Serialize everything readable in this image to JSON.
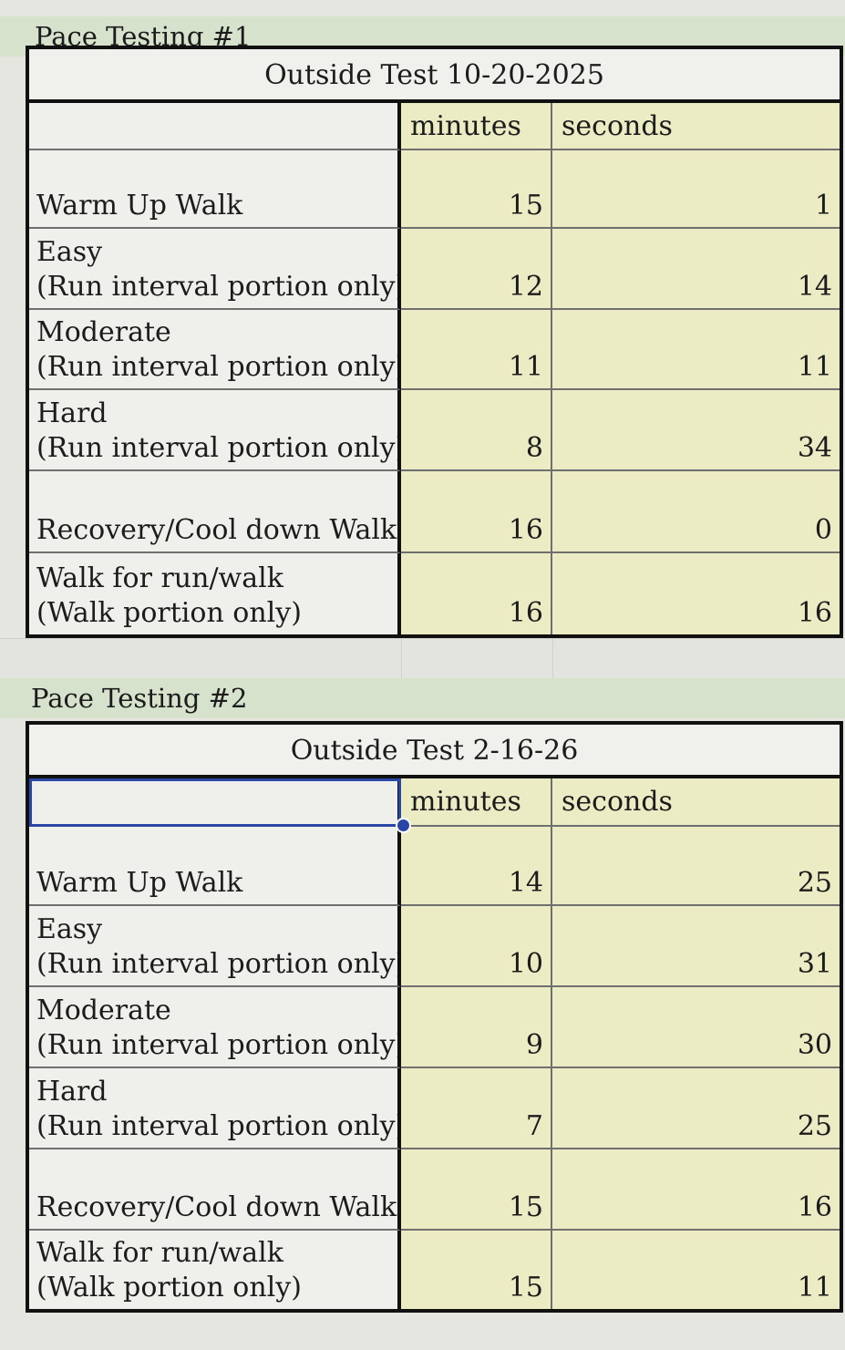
{
  "sections": [
    {
      "header": "Pace Testing #1",
      "title": "Outside Test 10-20-2025",
      "columns": [
        "minutes",
        "seconds"
      ],
      "rows": [
        {
          "label_line1": "",
          "label_line2": "Warm Up Walk",
          "minutes": "15",
          "seconds": "1"
        },
        {
          "label_line1": "Easy",
          "label_line2": "(Run interval portion only)",
          "minutes": "12",
          "seconds": "14"
        },
        {
          "label_line1": "Moderate",
          "label_line2": "(Run interval portion only)",
          "minutes": "11",
          "seconds": "11"
        },
        {
          "label_line1": "Hard",
          "label_line2": "(Run interval portion only)",
          "minutes": "8",
          "seconds": "34"
        },
        {
          "label_line1": "",
          "label_line2": "Recovery/Cool down Walk",
          "minutes": "16",
          "seconds": "0"
        },
        {
          "label_line1": "Walk for run/walk",
          "label_line2": "(Walk portion only)",
          "minutes": "16",
          "seconds": "16"
        }
      ]
    },
    {
      "header": "Pace Testing #2",
      "title": "Outside Test 2-16-26",
      "columns": [
        "minutes",
        "seconds"
      ],
      "rows": [
        {
          "label_line1": "",
          "label_line2": "Warm Up Walk",
          "minutes": "14",
          "seconds": "25"
        },
        {
          "label_line1": "Easy",
          "label_line2": "(Run interval portion only)",
          "minutes": "10",
          "seconds": "31"
        },
        {
          "label_line1": "Moderate",
          "label_line2": "(Run interval portion only)",
          "minutes": "9",
          "seconds": "30"
        },
        {
          "label_line1": "Hard",
          "label_line2": "(Run interval portion only)",
          "minutes": "7",
          "seconds": "25"
        },
        {
          "label_line1": "",
          "label_line2": "Recovery/Cool down Walk",
          "minutes": "15",
          "seconds": "16"
        },
        {
          "label_line1": "Walk for run/walk",
          "label_line2": "(Walk portion only)",
          "minutes": "15",
          "seconds": "11"
        }
      ]
    }
  ],
  "colors": {
    "header_band": "#d7e2cd",
    "value_fill": "#ebebc4",
    "selection": "#2a47a8"
  }
}
